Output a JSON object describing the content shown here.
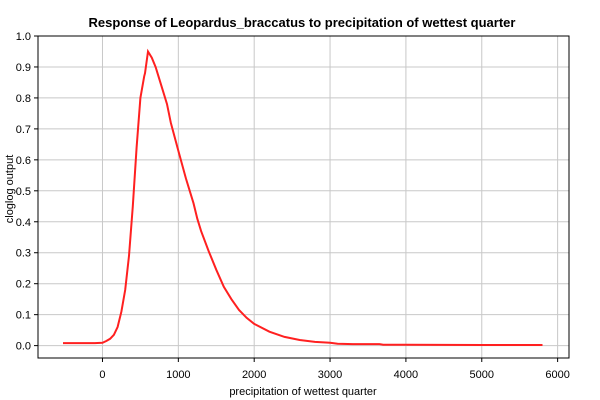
{
  "chart_data": {
    "type": "line",
    "title": "Response of Leopardus_braccatus to precipitation of wettest quarter",
    "xlabel": "precipitation of wettest quarter",
    "ylabel": "cloglog output",
    "xlim": [
      -850,
      6150
    ],
    "ylim": [
      -0.04,
      1.0
    ],
    "x_ticks": [
      0,
      1000,
      2000,
      3000,
      4000,
      5000,
      6000
    ],
    "y_ticks": [
      0.0,
      0.1,
      0.2,
      0.3,
      0.4,
      0.5,
      0.6,
      0.7,
      0.8,
      0.9,
      1.0
    ],
    "grid": true,
    "series": [
      {
        "color": "#ff2020",
        "x": [
          -520,
          -300,
          -100,
          0,
          50,
          100,
          150,
          200,
          250,
          300,
          350,
          400,
          450,
          500,
          550,
          560,
          600,
          650,
          700,
          750,
          800,
          850,
          900,
          1000,
          1100,
          1200,
          1250,
          1300,
          1400,
          1500,
          1600,
          1700,
          1800,
          1900,
          2000,
          2200,
          2400,
          2600,
          2800,
          3000,
          3100,
          3300,
          3650,
          3700,
          4000,
          5000,
          5800
        ],
        "y": [
          0.008,
          0.008,
          0.008,
          0.009,
          0.015,
          0.022,
          0.035,
          0.06,
          0.11,
          0.18,
          0.29,
          0.45,
          0.64,
          0.8,
          0.87,
          0.88,
          0.95,
          0.93,
          0.9,
          0.86,
          0.82,
          0.78,
          0.72,
          0.63,
          0.54,
          0.46,
          0.41,
          0.37,
          0.305,
          0.245,
          0.19,
          0.15,
          0.115,
          0.09,
          0.07,
          0.045,
          0.028,
          0.018,
          0.012,
          0.009,
          0.006,
          0.005,
          0.005,
          0.003,
          0.003,
          0.002,
          0.002
        ]
      }
    ]
  }
}
